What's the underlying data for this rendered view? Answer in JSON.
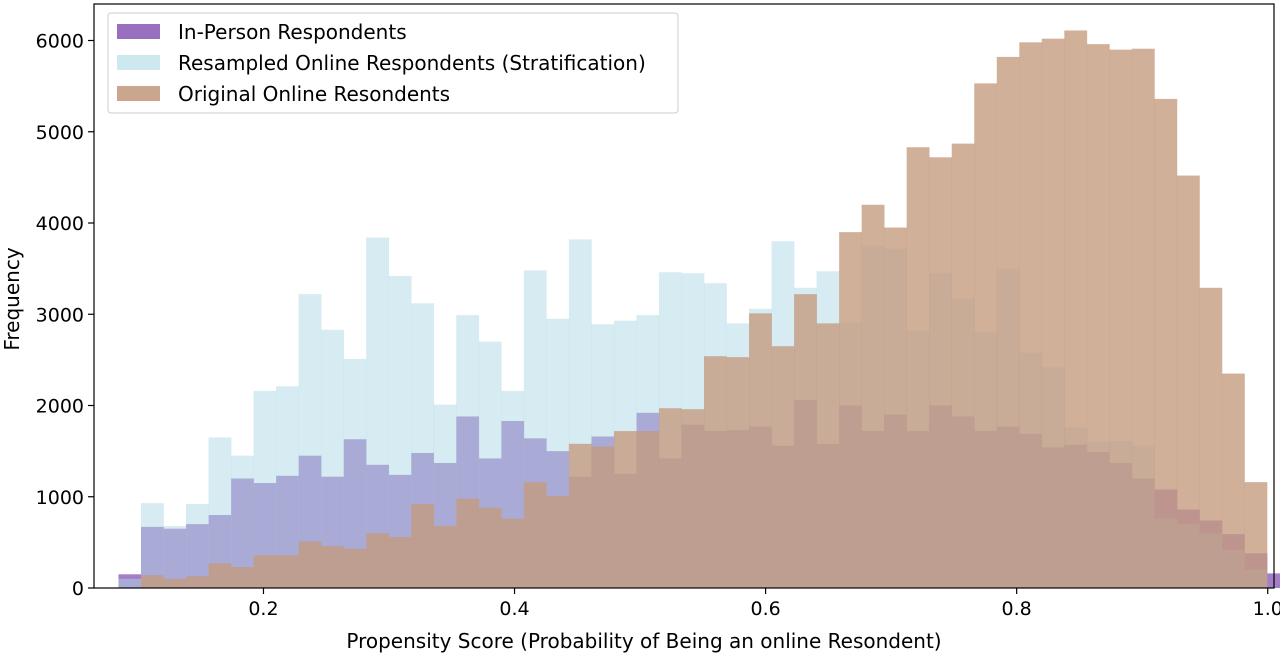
{
  "chart_data": {
    "type": "histogram",
    "xlabel": "Propensity Score (Probability of Being an online Resondent)",
    "ylabel": "Frequency",
    "xlim": [
      0.065,
      1.005
    ],
    "ylim": [
      0,
      6400
    ],
    "xticks": [
      "0.2",
      "0.4",
      "0.6",
      "0.8",
      "1.0"
    ],
    "xtick_values": [
      0.2,
      0.4,
      0.6,
      0.8,
      1.0
    ],
    "yticks": [
      "0",
      "1000",
      "2000",
      "3000",
      "4000",
      "5000",
      "6000"
    ],
    "ytick_values": [
      0,
      1000,
      2000,
      3000,
      4000,
      5000,
      6000
    ],
    "grid": false,
    "legend_position": "top-left",
    "bin_start": 0.0845,
    "bin_width": 0.01794,
    "series": [
      {
        "name": "In-Person Respondents",
        "color": "#9467bd",
        "alpha": 0.85,
        "values": [
          150,
          670,
          650,
          700,
          800,
          1200,
          1150,
          1230,
          1450,
          1220,
          1630,
          1350,
          1240,
          1480,
          1370,
          1880,
          1420,
          1830,
          1640,
          1500,
          1220,
          1660,
          1250,
          1920,
          1420,
          1790,
          1720,
          1730,
          1770,
          1560,
          2060,
          1580,
          2000,
          1720,
          1900,
          1720,
          2000,
          1880,
          1720,
          1770,
          1690,
          1540,
          1570,
          1490,
          1370,
          1200,
          1080,
          860,
          740,
          590,
          380,
          160,
          60,
          0
        ]
      },
      {
        "name": "Resampled Online Respondents (Stratification)",
        "color": "#add8e6",
        "alpha": 0.5,
        "values": [
          100,
          930,
          680,
          920,
          1650,
          1450,
          2160,
          2210,
          3220,
          2830,
          2510,
          3840,
          3420,
          3120,
          2010,
          2990,
          2700,
          2160,
          3480,
          2950,
          3820,
          2890,
          2930,
          2990,
          3460,
          3450,
          3340,
          2900,
          3060,
          3800,
          3290,
          3470,
          2910,
          3750,
          3720,
          2820,
          3450,
          3170,
          2800,
          3500,
          2580,
          2420,
          1760,
          1600,
          1610,
          1560,
          760,
          700,
          600,
          420,
          200,
          0,
          0,
          0
        ]
      },
      {
        "name": "Original Online Resondents",
        "color": "#c49a7e",
        "alpha": 0.78,
        "values": [
          0,
          140,
          100,
          130,
          270,
          230,
          360,
          360,
          510,
          460,
          430,
          600,
          560,
          920,
          680,
          980,
          880,
          760,
          1160,
          1010,
          1580,
          1550,
          1720,
          1720,
          1970,
          1960,
          2540,
          2530,
          3010,
          2650,
          3220,
          2900,
          3900,
          4200,
          3950,
          4830,
          4720,
          4870,
          5530,
          5820,
          5980,
          6020,
          6110,
          5960,
          5900,
          5910,
          5360,
          4520,
          3290,
          2350,
          1160,
          0,
          0,
          0
        ]
      }
    ]
  }
}
